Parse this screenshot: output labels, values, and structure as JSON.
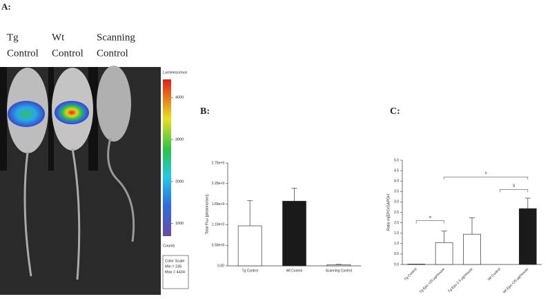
{
  "panels": {
    "a_label": "A:",
    "mice": [
      [
        "Tg",
        "Control"
      ],
      [
        "Wt",
        "Control"
      ],
      [
        "Scanning",
        "Control"
      ]
    ],
    "colorbar": {
      "title": "Luminescence",
      "lim": [
        700,
        4430
      ],
      "ticks": [
        1000,
        2000,
        3000,
        4000
      ],
      "unit": "Counts",
      "box": [
        "Color Scale",
        "Min = 235",
        "Max = 4434"
      ]
    },
    "b_label": "B:",
    "c_label": "C:"
  },
  "chart_data": [
    {
      "type": "bar",
      "ylabel": "Total Flux [photons/sec]",
      "categories": [
        "Tg Control",
        "Wt Control",
        "Scanning Control"
      ],
      "values": [
        1070000000,
        1730000000,
        30000000
      ],
      "errors": [
        670000000,
        350000000,
        10000000
      ],
      "colors": [
        "#ffffff",
        "#1a1a1a",
        "#ffffff"
      ],
      "ylim": [
        0,
        2750000000
      ],
      "yticks": [
        {
          "value": 0,
          "label": "0.00"
        },
        {
          "value": 550000000,
          "label": "5.50e+8"
        },
        {
          "value": 1100000000,
          "label": "1.10e+9"
        },
        {
          "value": 1650000000,
          "label": "1.65e+9"
        },
        {
          "value": 2200000000,
          "label": "2.20e+9"
        },
        {
          "value": 2750000000,
          "label": "2.75e+9"
        }
      ]
    },
    {
      "type": "bar",
      "ylabel": "Ratio m[EPO/GAPDH",
      "categories": [
        "Tg Control",
        "Tg Epo <25 µg/mouse",
        "Tg Epo 2.5 µg/mouse",
        "Wt Control",
        "Wt Epo <25 µg/mouse"
      ],
      "values": [
        0.02,
        1.05,
        1.45,
        0,
        2.68
      ],
      "errors": [
        0,
        0.55,
        0.78,
        0,
        0.5
      ],
      "colors": [
        "#ffffff",
        "#ffffff",
        "#ffffff",
        "#ffffff",
        "#1a1a1a"
      ],
      "ylim": [
        0,
        5
      ],
      "yticks": [
        {
          "value": 0,
          "label": "0.0"
        },
        0.5,
        {
          "value": 1,
          "label": "1.0"
        },
        1.5,
        {
          "value": 2,
          "label": "2.0"
        },
        2.5,
        {
          "value": 3,
          "label": "3.0"
        },
        3.5,
        {
          "value": 4,
          "label": "4.0"
        },
        4.5,
        {
          "value": 5,
          "label": "5.0"
        }
      ],
      "annotations": [
        {
          "text": "¤",
          "from": 0,
          "to": 1,
          "y": 2.1
        },
        {
          "text": "#",
          "from": 1,
          "to": 4,
          "y": 4.2
        },
        {
          "text": "§",
          "from": 3,
          "to": 4,
          "y": 3.6
        }
      ]
    }
  ]
}
